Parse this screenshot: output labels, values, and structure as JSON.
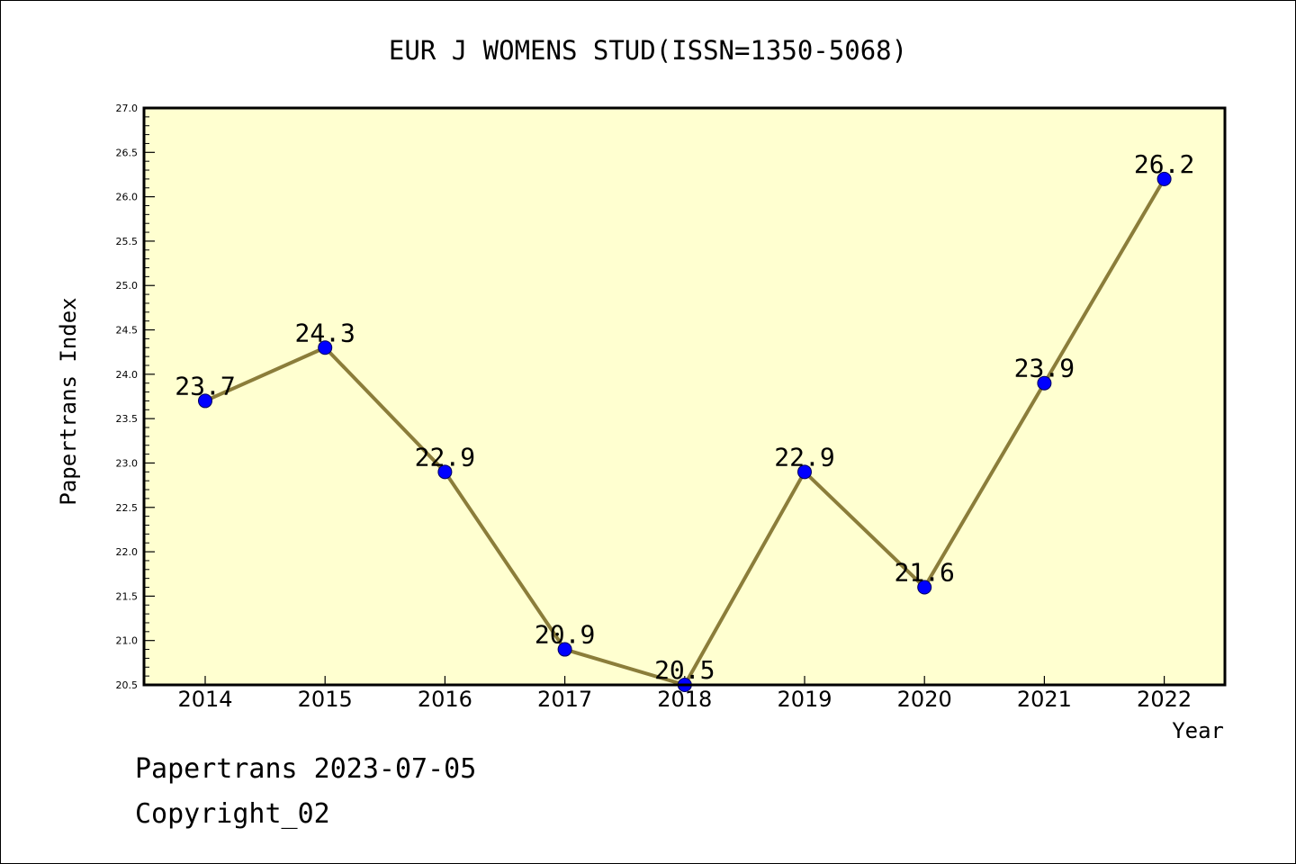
{
  "chart_data": {
    "type": "line",
    "title": "EUR J WOMENS STUD(ISSN=1350-5068)",
    "xlabel": "Year",
    "ylabel": "Papertrans Index",
    "x": [
      "2014",
      "2015",
      "2016",
      "2017",
      "2018",
      "2019",
      "2020",
      "2021",
      "2022"
    ],
    "values": [
      23.7,
      24.3,
      22.9,
      20.9,
      20.5,
      22.9,
      21.6,
      23.9,
      26.2
    ],
    "data_labels": [
      "23.7",
      "24.3",
      "22.9",
      "20.9",
      "20.5",
      "22.9",
      "21.6",
      "23.9",
      "26.2"
    ],
    "ylim": [
      20.5,
      27.0
    ],
    "yticks": [
      "20.5",
      "21.0",
      "21.5",
      "22.0",
      "22.5",
      "23.0",
      "23.5",
      "24.0",
      "24.5",
      "25.0",
      "25.5",
      "26.0",
      "26.5",
      "27.0"
    ],
    "grid": false,
    "legend": "none",
    "colors": {
      "plot_background": "#ffffd0",
      "line": "#8b7d3a",
      "marker": "#0000ff",
      "frame": "#000000"
    }
  },
  "footer": {
    "date_text": "Papertrans 2023-07-05",
    "copyright_text": "Copyright_02"
  }
}
